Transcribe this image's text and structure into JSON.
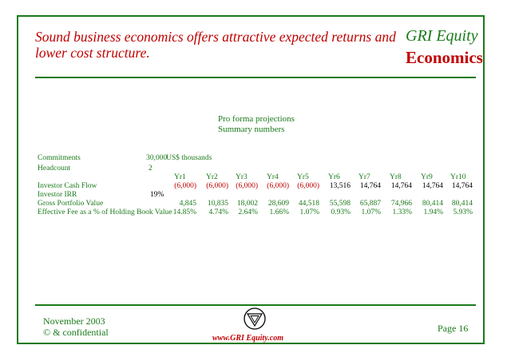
{
  "slide": {
    "headline": "Sound business economics offers attractive expected returns and lower cost structure.",
    "brand": "GRI Equity",
    "section": "Economics",
    "subtitle_line1": "Pro forma projections",
    "subtitle_line2": "Summary numbers"
  },
  "table": {
    "commitments_label": "Commitments",
    "commitments_value": "30,000",
    "commitments_unit": "US$ thousands",
    "headcount_label": "Headcount",
    "headcount_value": "2",
    "year_headers": [
      "Yr1",
      "Yr2",
      "Yr3",
      "Yr4",
      "Yr5",
      "Yr6",
      "Yr7",
      "Yr8",
      "Yr9",
      "Yr10"
    ],
    "cash_flow_label": "Investor Cash Flow",
    "cash_flow": [
      "(6,000)",
      "(6,000)",
      "(6,000)",
      "(6,000)",
      "(6,000)",
      "13,516",
      "14,764",
      "14,764",
      "14,764",
      "14,764"
    ],
    "irr_label": "Investor IRR",
    "irr_value": "19%",
    "gpv_label": "Gross Portfolio Value",
    "gpv": [
      "4,845",
      "10,835",
      "18,002",
      "28,609",
      "44,518",
      "55,598",
      "65,887",
      "74,966",
      "80,414",
      "80,414"
    ],
    "fee_label": "Effective Fee as a % of Holding Book Value",
    "fee": [
      "14.85%",
      "4.74%",
      "2.64%",
      "1.66%",
      "1.07%",
      "0.93%",
      "1.07%",
      "1.33%",
      "1.94%",
      "5.93%"
    ]
  },
  "footer": {
    "date": "November 2003",
    "confidential": "© & confidential",
    "url": "www.GRI Equity.com",
    "page": "Page 16"
  },
  "colors": {
    "green": "#1a7a1a",
    "red": "#c00000"
  },
  "icons": {
    "logo": "gri-triangle-logo-icon"
  }
}
